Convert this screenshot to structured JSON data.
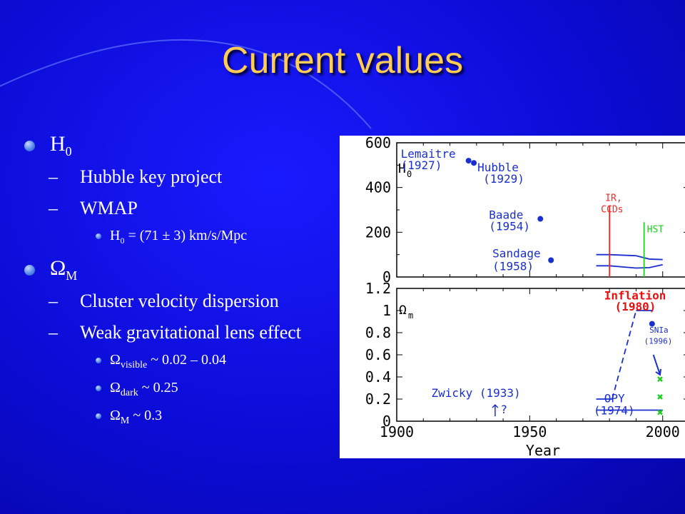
{
  "title": "Current values",
  "bullets": {
    "h0": {
      "symbol": "H",
      "sub": "0"
    },
    "h0_items": [
      "Hubble key project",
      "WMAP"
    ],
    "h0_value": {
      "pre": "H",
      "sub": "0",
      "post": " = (71 ± 3) km/s/Mpc"
    },
    "om": {
      "symbol": "Ω",
      "sub": "M"
    },
    "om_items": [
      "Cluster velocity dispersion",
      "Weak gravitational lens effect"
    ],
    "om_values": [
      {
        "pre": "Ω",
        "sub": "visible",
        "post": " ~ 0.02 – 0.04"
      },
      {
        "pre": "Ω",
        "sub": "dark",
        "post": " ~ 0.25"
      },
      {
        "pre": "Ω",
        "sub": "M",
        "post": " ~ 0.3"
      }
    ]
  },
  "chart_data": [
    {
      "type": "scatter",
      "ylabel": "H",
      "ylabel_sub": "0",
      "xlim": [
        1900,
        2010
      ],
      "ylim": [
        0,
        600
      ],
      "yticks": [
        0,
        200,
        400,
        600
      ],
      "yticks_minor": [
        100,
        300,
        500
      ],
      "points": [
        {
          "x": 1927,
          "y": 520,
          "label": "Lemaitre",
          "label2": "(1927)"
        },
        {
          "x": 1929,
          "y": 510,
          "label": "Hubble",
          "label2": "(1929)"
        },
        {
          "x": 1954,
          "y": 260,
          "label": "Baade",
          "label2": "(1954)"
        },
        {
          "x": 1958,
          "y": 75,
          "label": "Sandage",
          "label2": "(1958)"
        }
      ],
      "markers": [
        {
          "x": 1980,
          "label": "IR,",
          "label2": "CCDs",
          "color": "#ff2222"
        },
        {
          "x": 1993,
          "label": "HST",
          "label2": "",
          "color": "#22cc22"
        }
      ],
      "bands": [
        {
          "x": [
            1975,
            1980,
            1990,
            1995,
            2000
          ],
          "y": [
            100,
            100,
            95,
            80,
            78
          ]
        },
        {
          "x": [
            1975,
            1980,
            1990,
            1995,
            2000
          ],
          "y": [
            50,
            50,
            40,
            42,
            55
          ]
        }
      ]
    },
    {
      "type": "line",
      "ylabel": "Ω",
      "ylabel_sub": "m",
      "xlabel": "Year",
      "xlim": [
        1900,
        2010
      ],
      "ylim": [
        0,
        1.2
      ],
      "yticks": [
        0,
        0.2,
        0.4,
        0.6,
        0.8,
        1,
        1.2
      ],
      "xticks": [
        1900,
        1950,
        2000
      ],
      "series": [
        {
          "style": "solid",
          "x": [
            1975,
            1981
          ],
          "y": [
            0.2,
            0.2
          ]
        },
        {
          "style": "dashed",
          "x": [
            1981,
            1990
          ],
          "y": [
            0.2,
            1.0
          ]
        },
        {
          "style": "solid",
          "x": [
            1990,
            1996
          ],
          "y": [
            1.0,
            1.0
          ]
        },
        {
          "style": "solid",
          "x": [
            1975,
            2000
          ],
          "y": [
            0.1,
            0.1
          ]
        }
      ],
      "annotations": [
        {
          "text": "Zwicky (1933)",
          "x": 1913,
          "y": 0.22,
          "color": "#1a2fd0"
        },
        {
          "text": "?",
          "x": 1939,
          "y": 0.07,
          "color": "#1a2fd0"
        },
        {
          "text": "OPY",
          "x": 1978,
          "y": 0.17,
          "color": "#1a2fd0"
        },
        {
          "text": "(1974)",
          "x": 1974,
          "y": 0.06,
          "color": "#1a2fd0"
        },
        {
          "text": "Inflation",
          "x": 1978,
          "y": 1.1,
          "color": "#e81010"
        },
        {
          "text": "(1980)",
          "x": 1982,
          "y": 1.0,
          "color": "#e81010"
        },
        {
          "text": "SNIa",
          "x": 1995,
          "y": 0.8,
          "color": "#1a2fd0"
        },
        {
          "text": "(1996)",
          "x": 1993,
          "y": 0.7,
          "color": "#1a2fd0"
        }
      ],
      "sn_point": {
        "x": 1996,
        "y": 0.88
      },
      "green_crosses": [
        {
          "x": 1999,
          "y": 0.38
        },
        {
          "x": 1999,
          "y": 0.22
        },
        {
          "x": 1999,
          "y": 0.08
        }
      ],
      "colors": {
        "axis": "#000000",
        "label": "#1a2fd0",
        "red": "#e81010",
        "green": "#22cc22"
      }
    }
  ]
}
